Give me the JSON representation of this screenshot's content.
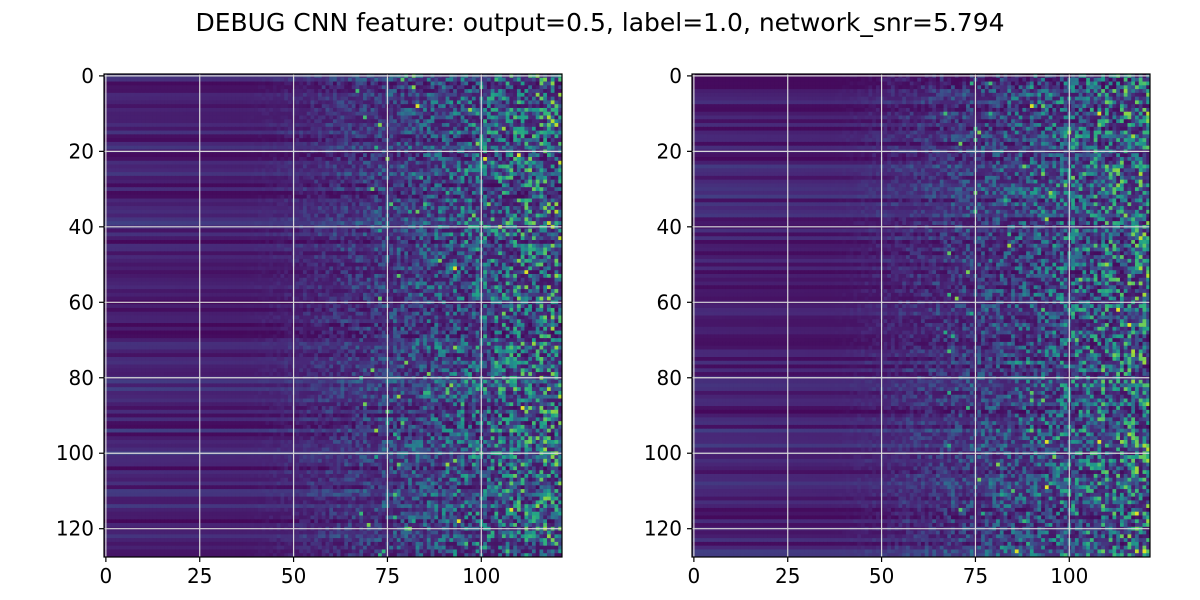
{
  "figure": {
    "title": "DEBUG CNN feature: output=0.5, label=1.0, network_snr=5.794"
  },
  "colors": {
    "colormap": "viridis",
    "grid": "#d9d9d9",
    "axis": "#000000"
  },
  "chart_data": [
    {
      "type": "heatmap",
      "panel": "left",
      "title": "",
      "xlabel": "",
      "ylabel": "",
      "colormap": "viridis",
      "grid": true,
      "n_rows": 128,
      "n_cols": 122,
      "xlim": [
        -0.5,
        121.5
      ],
      "ylim": [
        127.5,
        -0.5
      ],
      "x_ticks": [
        0,
        25,
        50,
        75,
        100
      ],
      "x_tick_labels": [
        "0",
        "25",
        "50",
        "75",
        "100"
      ],
      "y_ticks": [
        0,
        20,
        40,
        60,
        80,
        100,
        120
      ],
      "y_tick_labels": [
        "0",
        "20",
        "40",
        "60",
        "80",
        "100",
        "120"
      ],
      "value_range": [
        0,
        1
      ],
      "pattern": "low, row-striped values on the left; increasingly noisy with sparse bright pixels toward the right",
      "bright_points": [
        [
          83,
          8
        ],
        [
          101,
          22
        ],
        [
          110,
          21
        ],
        [
          93,
          51
        ],
        [
          112,
          52
        ],
        [
          94,
          118
        ],
        [
          108,
          115
        ],
        [
          111,
          88
        ]
      ],
      "seed": 17
    },
    {
      "type": "heatmap",
      "panel": "right",
      "title": "",
      "xlabel": "",
      "ylabel": "",
      "colormap": "viridis",
      "grid": true,
      "n_rows": 128,
      "n_cols": 122,
      "xlim": [
        -0.5,
        121.5
      ],
      "ylim": [
        127.5,
        -0.5
      ],
      "x_ticks": [
        0,
        25,
        50,
        75,
        100
      ],
      "x_tick_labels": [
        "0",
        "25",
        "50",
        "75",
        "100"
      ],
      "y_ticks": [
        0,
        20,
        40,
        60,
        80,
        100,
        120
      ],
      "y_tick_labels": [
        "0",
        "20",
        "40",
        "60",
        "80",
        "100",
        "120"
      ],
      "value_range": [
        0,
        1
      ],
      "pattern": "low, row-striped values on the left; increasingly noisy with sparse bright pixels toward the right",
      "bright_points": [
        [
          90,
          8
        ],
        [
          108,
          10
        ],
        [
          116,
          66
        ],
        [
          113,
          62
        ],
        [
          94,
          97
        ],
        [
          108,
          97
        ],
        [
          94,
          109
        ],
        [
          118,
          116
        ],
        [
          86,
          126
        ],
        [
          120,
          126
        ]
      ],
      "seed": 53
    }
  ]
}
